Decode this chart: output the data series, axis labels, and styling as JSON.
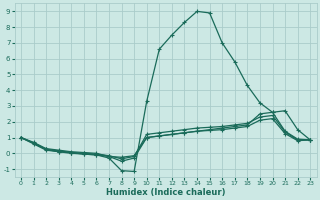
{
  "xlabel": "Humidex (Indice chaleur)",
  "xlim": [
    -0.5,
    23.5
  ],
  "ylim": [
    -1.5,
    9.5
  ],
  "xticks": [
    0,
    1,
    2,
    3,
    4,
    5,
    6,
    7,
    8,
    9,
    10,
    11,
    12,
    13,
    14,
    15,
    16,
    17,
    18,
    19,
    20,
    21,
    22,
    23
  ],
  "yticks": [
    -1,
    0,
    1,
    2,
    3,
    4,
    5,
    6,
    7,
    8,
    9
  ],
  "bg_color": "#cce8e4",
  "grid_color": "#aaccca",
  "line_color": "#1a6b5a",
  "lines": [
    [
      0,
      1,
      1,
      0.7,
      2,
      0.3,
      3,
      0.2,
      4,
      0.1,
      5,
      0.05,
      6,
      0.0,
      7,
      -0.2,
      8,
      -0.5,
      9,
      -0.3,
      10,
      1.0,
      11,
      1.1,
      12,
      1.2,
      13,
      1.3,
      14,
      1.4,
      15,
      1.5,
      16,
      1.6,
      17,
      1.7,
      18,
      1.8,
      19,
      2.5,
      20,
      2.6,
      21,
      1.4,
      22,
      0.9,
      23,
      0.85
    ],
    [
      0,
      1,
      1,
      0.65,
      2,
      0.25,
      3,
      0.15,
      4,
      0.05,
      5,
      -0.05,
      6,
      -0.1,
      7,
      -0.3,
      8,
      -1.1,
      9,
      -1.15,
      10,
      3.3,
      11,
      6.6,
      12,
      7.5,
      13,
      8.3,
      14,
      9.0,
      15,
      8.9,
      16,
      7.0,
      17,
      5.8,
      18,
      4.3,
      19,
      3.2,
      20,
      2.6,
      21,
      2.7,
      22,
      1.5,
      23,
      0.85
    ],
    [
      0,
      1,
      1,
      0.65,
      2,
      0.25,
      3,
      0.1,
      4,
      0.05,
      5,
      0.0,
      6,
      -0.05,
      7,
      -0.15,
      8,
      -0.35,
      9,
      -0.2,
      10,
      1.2,
      11,
      1.3,
      12,
      1.4,
      13,
      1.5,
      14,
      1.6,
      15,
      1.65,
      16,
      1.7,
      17,
      1.8,
      18,
      1.9,
      19,
      2.3,
      20,
      2.4,
      21,
      1.35,
      22,
      0.85,
      23,
      0.85
    ],
    [
      0,
      1,
      1,
      0.6,
      2,
      0.2,
      3,
      0.1,
      4,
      0.0,
      5,
      -0.05,
      6,
      -0.1,
      7,
      -0.2,
      8,
      -0.25,
      9,
      -0.15,
      10,
      1.0,
      11,
      1.1,
      12,
      1.2,
      13,
      1.3,
      14,
      1.4,
      15,
      1.45,
      16,
      1.5,
      17,
      1.6,
      18,
      1.7,
      19,
      2.1,
      20,
      2.2,
      21,
      1.25,
      22,
      0.8,
      23,
      0.85
    ]
  ]
}
